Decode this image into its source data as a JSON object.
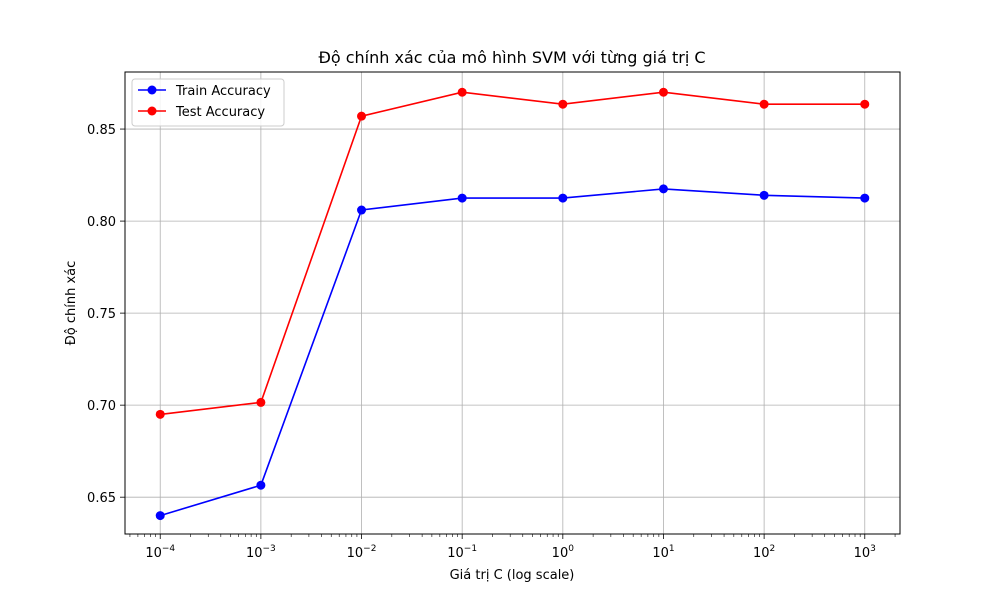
{
  "chart_data": {
    "type": "line",
    "title": "Độ chính xác của mô hình SVM với từng giá trị C",
    "xlabel": "Giá trị C (log scale)",
    "ylabel": "Độ chính xác",
    "x_scale": "log",
    "x": [
      0.0001,
      0.001,
      0.01,
      0.1,
      1,
      10,
      100,
      1000
    ],
    "x_tick_labels": [
      {
        "base": "10",
        "exp": "−4"
      },
      {
        "base": "10",
        "exp": "−3"
      },
      {
        "base": "10",
        "exp": "−2"
      },
      {
        "base": "10",
        "exp": "−1"
      },
      {
        "base": "10",
        "exp": "0"
      },
      {
        "base": "10",
        "exp": "1"
      },
      {
        "base": "10",
        "exp": "2"
      },
      {
        "base": "10",
        "exp": "3"
      }
    ],
    "y_ticks": [
      "0.65",
      "0.70",
      "0.75",
      "0.80",
      "0.85"
    ],
    "ylim": [
      0.63,
      0.881
    ],
    "xlim_log10": [
      -4.35,
      3.35
    ],
    "grid": true,
    "legend_position": "top-left",
    "series": [
      {
        "name": "Train Accuracy",
        "color": "#0000ff",
        "marker": "circle",
        "values": [
          0.64,
          0.6565,
          0.806,
          0.8125,
          0.8125,
          0.8175,
          0.814,
          0.8125
        ]
      },
      {
        "name": "Test Accuracy",
        "color": "#ff0000",
        "marker": "circle",
        "values": [
          0.695,
          0.7015,
          0.857,
          0.87,
          0.8635,
          0.87,
          0.8635,
          0.8635
        ]
      }
    ]
  }
}
